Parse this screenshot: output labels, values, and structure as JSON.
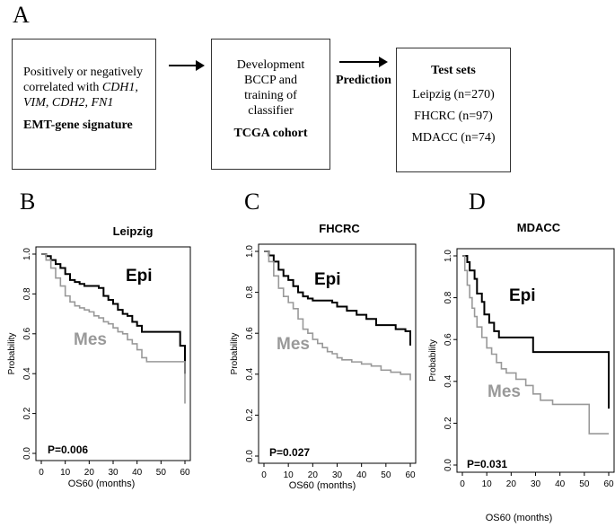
{
  "panels": {
    "a": "A",
    "b": "B",
    "c": "C",
    "d": "D"
  },
  "flow": {
    "box1": {
      "line1": "Positively or negatively",
      "line2": "correlated with ",
      "gene1": "CDH1,",
      "gene2": "VIM",
      "sep": ", ",
      "gene3": "CDH2,",
      "gene4": "FN1",
      "title": "EMT-gene signature"
    },
    "box2": {
      "line1": "Development",
      "line2": "BCCP and",
      "line3": "training of",
      "line4": "classifier",
      "title": "TCGA cohort"
    },
    "arrow_label": "Prediction",
    "box3": {
      "title": "Test sets",
      "items": [
        "Leipzig (n=270)",
        "FHCRC (n=97)",
        "MDACC (n=74)"
      ]
    }
  },
  "chart_data": [
    {
      "type": "line",
      "title": "Leipzig",
      "xlabel": "",
      "ylabel": "Probability",
      "xlim": [
        0,
        60
      ],
      "ylim": [
        0,
        1
      ],
      "xticks": [
        "0",
        "10",
        "20",
        "30",
        "40",
        "50",
        "60"
      ],
      "yticks": [
        "0.0",
        "0.2",
        "0.4",
        "0.6",
        "0.8",
        "1.0"
      ],
      "pvalue": "P=0.006",
      "series": [
        {
          "name": "Epi",
          "color": "#000000",
          "x": [
            0,
            2,
            4,
            6,
            8,
            10,
            12,
            14,
            16,
            18,
            20,
            22,
            24,
            26,
            28,
            30,
            32,
            34,
            36,
            38,
            40,
            42,
            50,
            58,
            60
          ],
          "y": [
            1.0,
            0.99,
            0.97,
            0.95,
            0.93,
            0.9,
            0.87,
            0.86,
            0.85,
            0.84,
            0.84,
            0.84,
            0.83,
            0.79,
            0.77,
            0.75,
            0.72,
            0.7,
            0.69,
            0.66,
            0.64,
            0.61,
            0.61,
            0.54,
            0.4
          ]
        },
        {
          "name": "Mes",
          "color": "#999999",
          "x": [
            0,
            2,
            4,
            6,
            8,
            10,
            12,
            14,
            16,
            18,
            20,
            22,
            24,
            26,
            28,
            30,
            32,
            34,
            36,
            38,
            40,
            42,
            44,
            50,
            58,
            60
          ],
          "y": [
            1.0,
            0.97,
            0.93,
            0.88,
            0.84,
            0.79,
            0.76,
            0.74,
            0.73,
            0.72,
            0.71,
            0.69,
            0.68,
            0.66,
            0.65,
            0.63,
            0.61,
            0.6,
            0.57,
            0.55,
            0.52,
            0.48,
            0.46,
            0.46,
            0.46,
            0.25
          ]
        }
      ]
    },
    {
      "type": "line",
      "title": "FHCRC",
      "xlabel": "",
      "ylabel": "Probability",
      "xlim": [
        0,
        60
      ],
      "ylim": [
        0,
        1
      ],
      "xticks": [
        "0",
        "10",
        "20",
        "30",
        "40",
        "50",
        "60"
      ],
      "yticks": [
        "0.0",
        "0.2",
        "0.4",
        "0.6",
        "0.8",
        "1.0"
      ],
      "pvalue": "P=0.027",
      "series": [
        {
          "name": "Epi",
          "color": "#000000",
          "x": [
            0,
            2,
            4,
            6,
            8,
            10,
            12,
            14,
            16,
            18,
            20,
            24,
            28,
            30,
            34,
            38,
            42,
            46,
            50,
            54,
            58,
            60
          ],
          "y": [
            1.0,
            0.98,
            0.95,
            0.91,
            0.88,
            0.86,
            0.83,
            0.8,
            0.78,
            0.77,
            0.76,
            0.76,
            0.75,
            0.73,
            0.71,
            0.69,
            0.67,
            0.64,
            0.64,
            0.62,
            0.61,
            0.54
          ]
        },
        {
          "name": "Mes",
          "color": "#999999",
          "x": [
            0,
            2,
            4,
            6,
            8,
            10,
            12,
            14,
            16,
            18,
            20,
            22,
            24,
            26,
            28,
            30,
            32,
            36,
            40,
            44,
            48,
            52,
            56,
            60
          ],
          "y": [
            1.0,
            0.95,
            0.88,
            0.82,
            0.78,
            0.75,
            0.72,
            0.67,
            0.62,
            0.6,
            0.57,
            0.55,
            0.53,
            0.51,
            0.5,
            0.48,
            0.47,
            0.46,
            0.45,
            0.44,
            0.42,
            0.41,
            0.4,
            0.37
          ]
        }
      ]
    },
    {
      "type": "line",
      "title": "MDACC",
      "xlabel": "OS60 (months)",
      "ylabel": "Probability",
      "xlim": [
        0,
        60
      ],
      "ylim": [
        0,
        1
      ],
      "xticks": [
        "0",
        "10",
        "20",
        "30",
        "40",
        "50",
        "60"
      ],
      "yticks": [
        "0.0",
        "0.2",
        "0.4",
        "0.6",
        "0.8",
        "1.0"
      ],
      "pvalue": "P=0.031",
      "series": [
        {
          "name": "Epi",
          "color": "#000000",
          "x": [
            0,
            2,
            3,
            5,
            6,
            8,
            9,
            11,
            13,
            15,
            29,
            59,
            60
          ],
          "y": [
            1.0,
            0.97,
            0.93,
            0.89,
            0.82,
            0.78,
            0.72,
            0.68,
            0.64,
            0.61,
            0.54,
            0.54,
            0.27
          ]
        },
        {
          "name": "Mes",
          "color": "#999999",
          "x": [
            0,
            1,
            2,
            3,
            4,
            5,
            6,
            8,
            10,
            12,
            14,
            16,
            18,
            22,
            26,
            29,
            32,
            37,
            52,
            60
          ],
          "y": [
            1.0,
            0.93,
            0.86,
            0.8,
            0.75,
            0.71,
            0.66,
            0.61,
            0.56,
            0.53,
            0.49,
            0.46,
            0.44,
            0.41,
            0.38,
            0.34,
            0.31,
            0.29,
            0.15,
            0.15
          ]
        }
      ]
    }
  ],
  "shared_xlabel": "OS60 (months)"
}
